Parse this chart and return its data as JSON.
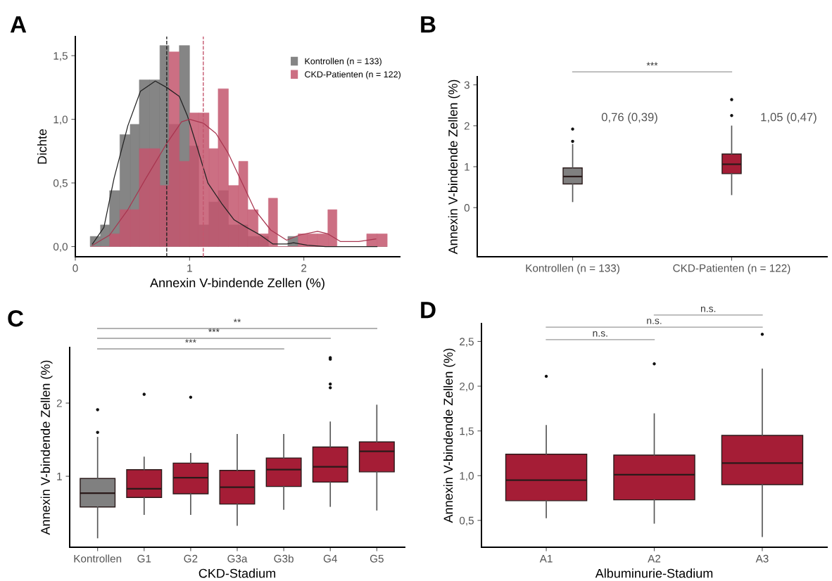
{
  "chart_data": [
    {
      "type": "histogram",
      "title": "A",
      "xlabel": "Annexin V-bindende Zellen (%)",
      "ylabel": "Dichte",
      "bins": [
        0.13,
        0.22,
        0.3,
        0.39,
        0.48,
        0.56,
        0.65,
        0.74,
        0.82,
        0.91,
        1.0,
        1.08,
        1.17,
        1.25,
        1.34,
        1.43,
        1.51,
        1.6,
        1.69,
        1.77,
        1.86,
        1.95,
        2.03,
        2.12,
        2.21,
        2.29,
        2.38,
        2.47,
        2.55,
        2.64,
        2.73
      ],
      "series": [
        {
          "name": "Kontrollen (n = 133)",
          "color": "#707070",
          "values": [
            0.08,
            0.17,
            0.44,
            0.88,
            0.96,
            1.31,
            1.31,
            1.58,
            0.96,
            1.58,
            0.79,
            0.17,
            0.35,
            0.44,
            0.17,
            0.17,
            0.08,
            0.08,
            0,
            0,
            0.08,
            0,
            0,
            0,
            0,
            0,
            0,
            0,
            0,
            0
          ]
        },
        {
          "name": "CKD-Patienten (n = 122)",
          "color": "#c4566e",
          "values": [
            0,
            0,
            0.1,
            0.29,
            0.29,
            0.77,
            0.77,
            0.48,
            1.53,
            0.67,
            1.05,
            1.05,
            0.77,
            1.24,
            0.48,
            0.67,
            0.29,
            0.1,
            0.38,
            0,
            0,
            0.1,
            0.1,
            0.1,
            0.29,
            0,
            0,
            0,
            0.1,
            0.1
          ]
        },
        {
          "type": "line",
          "color": "#222222",
          "x": [
            0.15,
            0.25,
            0.34,
            0.46,
            0.57,
            0.7,
            0.8,
            0.91,
            0.98,
            1.07,
            1.16,
            1.28,
            1.39,
            1.5,
            1.62,
            1.73,
            1.85,
            1.91,
            2.03,
            2.19,
            2.64
          ],
          "values": [
            0.02,
            0.15,
            0.54,
            0.95,
            1.22,
            1.3,
            1.25,
            1.18,
            1.03,
            0.77,
            0.5,
            0.34,
            0.21,
            0.15,
            0.09,
            0.02,
            0.02,
            0.03,
            0.01,
            0,
            0
          ]
        },
        {
          "type": "line",
          "color": "#a8354f",
          "x": [
            0.15,
            0.3,
            0.46,
            0.62,
            0.8,
            0.93,
            1.0,
            1.12,
            1.23,
            1.34,
            1.46,
            1.57,
            1.71,
            1.85,
            1.96,
            2.12,
            2.21,
            2.32,
            2.48,
            2.63
          ],
          "values": [
            0.01,
            0.09,
            0.29,
            0.54,
            0.81,
            0.98,
            1.0,
            0.97,
            0.89,
            0.73,
            0.5,
            0.29,
            0.13,
            0.05,
            0.09,
            0.12,
            0.1,
            0.04,
            0.04,
            0.06
          ]
        }
      ],
      "ref_lines": [
        {
          "axis": "x",
          "value": 0.8,
          "color": "#222222",
          "line_style": "dashed"
        },
        {
          "axis": "x",
          "value": 1.12,
          "color": "#c4566e",
          "line_style": "dashed"
        }
      ],
      "xlim": [
        0,
        2.84
      ],
      "ylim": [
        -0.08,
        1.65
      ],
      "xticks": [
        0,
        1,
        2
      ],
      "yticks": [
        {
          "value": 0,
          "label": "0,0"
        },
        {
          "value": 0.5,
          "label": "0,5"
        },
        {
          "value": 1,
          "label": "1,0"
        },
        {
          "value": 1.5,
          "label": "1,5"
        }
      ],
      "legend": "top right"
    },
    {
      "type": "box",
      "title": "B",
      "ylabel": "Annexin V-bindende Zellen (%)",
      "categories": [
        "Kontrollen (n = 133)",
        "CKD-Patienten (n = 122)"
      ],
      "colors": [
        "#808080",
        "#a51d36"
      ],
      "boxes": [
        {
          "low": 0.15,
          "q1": 0.58,
          "median": 0.76,
          "q3": 0.97,
          "high": 1.54,
          "outliers": [
            1.62,
            1.92
          ]
        },
        {
          "low": 0.32,
          "q1": 0.83,
          "median": 1.06,
          "q3": 1.31,
          "high": 1.99,
          "outliers": [
            2.25,
            2.64
          ]
        }
      ],
      "annotations": [
        "***",
        "0,76 (0,39)",
        "1,05 (0,47)"
      ],
      "ylim": [
        -1.2,
        3.2
      ],
      "yticks": [
        0,
        1,
        2,
        3
      ]
    },
    {
      "type": "box",
      "title": "C",
      "xlabel": "CKD-Stadium",
      "ylabel": "Annexin V-bindende Zellen (%)",
      "categories": [
        "Kontrollen",
        "G1",
        "G2",
        "G3a",
        "G3b",
        "G4",
        "G5"
      ],
      "colors": [
        "#808080",
        "#a51d36",
        "#a51d36",
        "#a51d36",
        "#a51d36",
        "#a51d36",
        "#a51d36"
      ],
      "boxes": [
        {
          "low": 0.16,
          "q1": 0.58,
          "median": 0.77,
          "q3": 0.97,
          "high": 1.53,
          "outliers": [
            1.6,
            1.91
          ]
        },
        {
          "low": 0.48,
          "q1": 0.71,
          "median": 0.83,
          "q3": 1.09,
          "high": 1.26,
          "outliers": [
            2.12
          ]
        },
        {
          "low": 0.48,
          "q1": 0.76,
          "median": 0.98,
          "q3": 1.18,
          "high": 1.31,
          "outliers": [
            2.08
          ]
        },
        {
          "low": 0.33,
          "q1": 0.62,
          "median": 0.85,
          "q3": 1.08,
          "high": 1.57
        },
        {
          "low": 0.55,
          "q1": 0.86,
          "median": 1.09,
          "q3": 1.25,
          "high": 1.57
        },
        {
          "low": 0.59,
          "q1": 0.92,
          "median": 1.13,
          "q3": 1.4,
          "high": 1.74,
          "outliers": [
            2.21,
            2.26,
            2.6,
            2.62
          ]
        },
        {
          "low": 0.54,
          "q1": 1.06,
          "median": 1.34,
          "q3": 1.47,
          "high": 1.97
        }
      ],
      "annotations": [
        "**",
        "***",
        "***"
      ],
      "ylim": [
        0.03,
        2.76
      ],
      "yticks": [
        1,
        2
      ]
    },
    {
      "type": "box",
      "title": "D",
      "xlabel": "Albuminurie-Stadium",
      "ylabel": "Annexin V-bindende Zellen (%)",
      "categories": [
        "A1",
        "A2",
        "A3"
      ],
      "colors": [
        "#a51d36",
        "#a51d36",
        "#a51d36"
      ],
      "boxes": [
        {
          "low": 0.53,
          "q1": 0.72,
          "median": 0.95,
          "q3": 1.24,
          "high": 1.56,
          "outliers": [
            2.11
          ]
        },
        {
          "low": 0.47,
          "q1": 0.73,
          "median": 1.01,
          "q3": 1.23,
          "high": 1.69,
          "outliers": [
            2.25
          ]
        },
        {
          "low": 0.32,
          "q1": 0.9,
          "median": 1.14,
          "q3": 1.45,
          "high": 2.19,
          "outliers": [
            2.58
          ]
        }
      ],
      "annotations": [
        "n.s.",
        "n.s.",
        "n.s."
      ],
      "ylim": [
        0.2,
        2.7
      ],
      "yticks": [
        {
          "value": 0.5,
          "label": "0,5"
        },
        {
          "value": 1,
          "label": "1,0"
        },
        {
          "value": 1.5,
          "label": "1,5"
        },
        {
          "value": 2,
          "label": "2,0"
        },
        {
          "value": 2.5,
          "label": "2,5"
        }
      ]
    }
  ]
}
